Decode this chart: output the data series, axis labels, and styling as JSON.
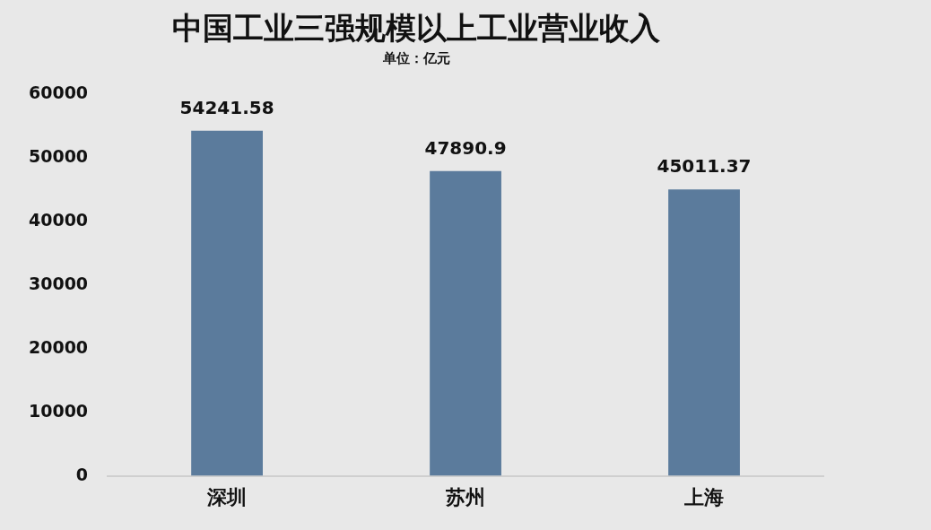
{
  "chart_data": {
    "type": "bar",
    "title": "中国工业三强规模以上工业营业收入",
    "subtitle": "单位：亿元",
    "categories": [
      "深圳",
      "苏州",
      "上海"
    ],
    "values": [
      54241.58,
      47890.9,
      45011.37
    ],
    "color": "#5b7b9c",
    "ylim": [
      0,
      60000
    ],
    "yticks": [
      0,
      10000,
      20000,
      30000,
      40000,
      50000,
      60000
    ],
    "grid": false,
    "data_labels": true
  }
}
